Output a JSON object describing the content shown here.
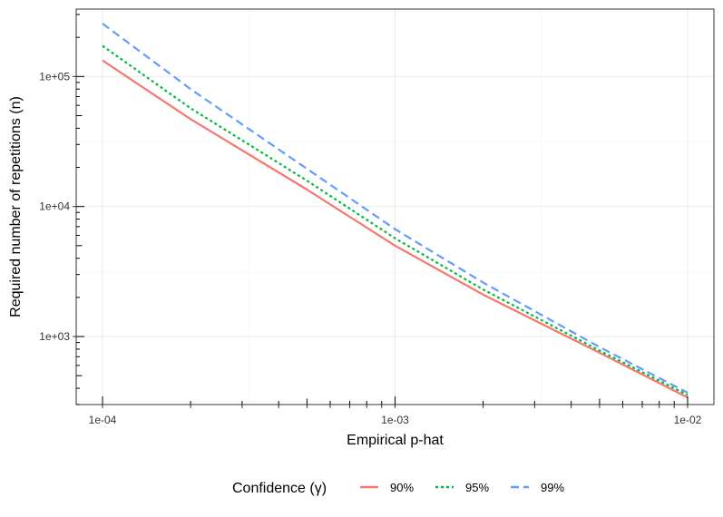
{
  "chart_data": {
    "type": "line",
    "xlabel": "Empirical p-hat",
    "ylabel": "Required number of repetitions (n)",
    "x_scale": "log",
    "y_scale": "log",
    "xlim": [
      0.0001,
      0.01
    ],
    "ylim": [
      300,
      330000
    ],
    "x_ticks": [
      {
        "value": 0.0001,
        "label": "1e-04"
      },
      {
        "value": 0.001,
        "label": "1e-03"
      },
      {
        "value": 0.01,
        "label": "1e-02"
      }
    ],
    "y_ticks": [
      {
        "value": 1000,
        "label": "1e+03"
      },
      {
        "value": 10000,
        "label": "1e+04"
      },
      {
        "value": 100000,
        "label": "1e+05"
      }
    ],
    "grid": true,
    "legend": {
      "title": "Confidence (γ)",
      "position": "bottom"
    },
    "series": [
      {
        "name": "90%",
        "color": "#F8766D",
        "dash": "solid",
        "x": [
          0.0001,
          0.0002,
          0.0005,
          0.001,
          0.002,
          0.005,
          0.01
        ],
        "y": [
          133000,
          47000,
          13500,
          5000,
          2100,
          750,
          340
        ]
      },
      {
        "name": "95%",
        "color": "#00BA38",
        "dash": "dotted",
        "x": [
          0.0001,
          0.0002,
          0.0005,
          0.001,
          0.002,
          0.005,
          0.01
        ],
        "y": [
          172000,
          57000,
          15800,
          5700,
          2300,
          780,
          355
        ]
      },
      {
        "name": "99%",
        "color": "#619CFF",
        "dash": "dashed",
        "x": [
          0.0001,
          0.0002,
          0.0005,
          0.001,
          0.002,
          0.005,
          0.01
        ],
        "y": [
          255000,
          80000,
          19500,
          6700,
          2600,
          830,
          370
        ]
      }
    ]
  }
}
